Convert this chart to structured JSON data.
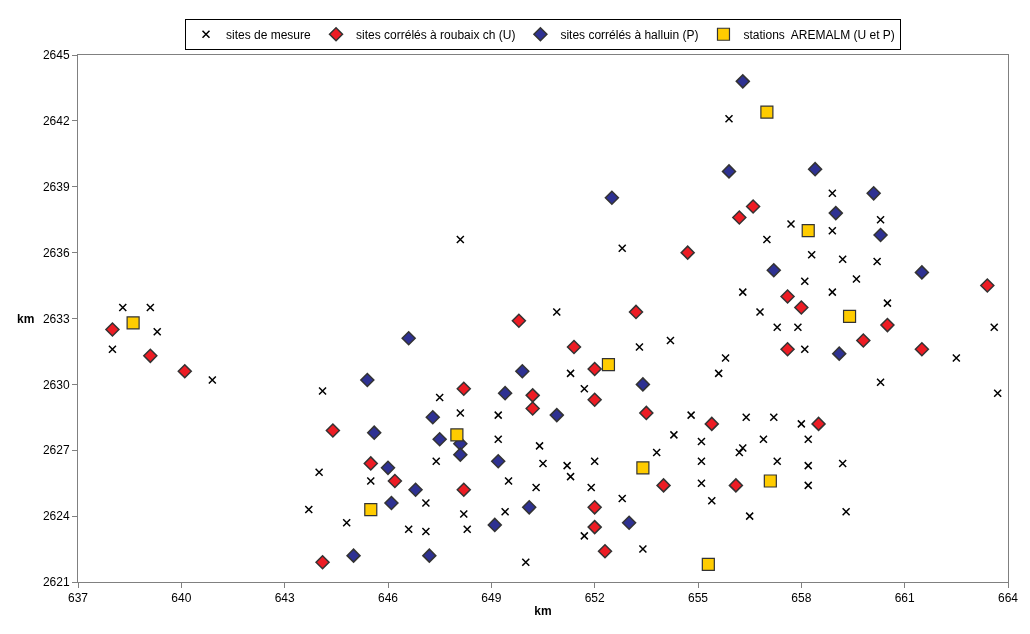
{
  "chart_data": {
    "type": "scatter",
    "xlabel": "km",
    "ylabel": "km",
    "xlim": [
      637,
      664
    ],
    "xticks": [
      637,
      640,
      643,
      646,
      649,
      652,
      655,
      658,
      661,
      664
    ],
    "ylim": [
      2621,
      2645
    ],
    "yticks": [
      2621,
      2624,
      2627,
      2630,
      2633,
      2636,
      2639,
      2642,
      2645
    ],
    "legend": "top",
    "series": [
      {
        "name": "sites de mesure",
        "color": "#000000",
        "marker": "cross",
        "x": [
          638.3,
          639.1,
          638.0,
          639.3,
          640.9,
          644.1,
          644.0,
          643.7,
          644.8,
          645.5,
          648.1,
          652.8,
          650.9,
          655.9,
          658.9,
          660.3,
          657.7,
          657.0,
          658.9,
          658.3,
          659.2,
          660.2,
          658.1,
          659.6,
          656.3,
          658.9,
          656.8,
          660.5,
          653.3,
          654.2,
          651.3,
          651.7,
          647.5,
          648.1,
          649.2,
          654.8,
          649.2,
          654.3,
          650.4,
          653.8,
          655.1,
          647.4,
          650.5,
          651.2,
          652.0,
          655.1,
          651.3,
          649.5,
          655.1,
          650.3,
          651.9,
          647.1,
          652.8,
          648.2,
          649.4,
          646.6,
          647.1,
          648.3,
          651.7,
          653.4,
          650.0,
          657.3,
          657.9,
          658.1,
          663.6,
          655.8,
          655.6,
          662.5,
          660.3,
          663.7,
          656.4,
          657.2,
          658.0,
          658.2,
          656.9,
          656.3,
          656.2,
          657.3,
          658.2,
          659.2,
          658.2,
          655.4,
          656.5,
          659.3
        ],
        "values": [
          2633.5,
          2633.5,
          2631.6,
          2632.4,
          2630.2,
          2629.7,
          2626.0,
          2624.3,
          2623.7,
          2625.6,
          2636.6,
          2636.2,
          2633.3,
          2642.1,
          2638.7,
          2637.5,
          2637.3,
          2636.6,
          2637.0,
          2635.9,
          2635.7,
          2635.6,
          2634.7,
          2634.8,
          2634.2,
          2634.2,
          2633.3,
          2633.7,
          2631.7,
          2632.0,
          2630.5,
          2629.8,
          2629.4,
          2628.7,
          2628.6,
          2628.6,
          2627.5,
          2627.7,
          2627.2,
          2626.9,
          2627.4,
          2626.5,
          2626.4,
          2626.3,
          2626.5,
          2626.5,
          2625.8,
          2625.6,
          2625.5,
          2625.3,
          2625.3,
          2624.6,
          2624.8,
          2624.1,
          2624.2,
          2623.4,
          2623.3,
          2623.4,
          2623.1,
          2622.5,
          2621.9,
          2632.6,
          2632.6,
          2631.6,
          2632.6,
          2631.2,
          2630.5,
          2631.2,
          2630.1,
          2629.6,
          2628.5,
          2628.5,
          2628.2,
          2627.5,
          2627.5,
          2627.1,
          2626.9,
          2626.5,
          2626.3,
          2626.4,
          2625.4,
          2624.7,
          2624.0,
          2624.2
        ]
      },
      {
        "name": "sites corrélés à roubaix ch (U)",
        "color": "#ed1c24",
        "marker": "diamond",
        "x": [
          638.0,
          639.1,
          640.1,
          644.4,
          645.5,
          646.2,
          644.1,
          648.2,
          648.2,
          649.8,
          650.2,
          650.2,
          651.4,
          652.0,
          652.0,
          652.0,
          652.0,
          652.3,
          653.2,
          653.5,
          654.0,
          654.7,
          655.4,
          656.1,
          656.2,
          656.6,
          657.6,
          658.0,
          657.6,
          658.5,
          659.8,
          660.5,
          661.5,
          663.4
        ],
        "values": [
          2632.5,
          2631.3,
          2630.6,
          2627.9,
          2626.4,
          2625.6,
          2621.9,
          2629.8,
          2625.2,
          2632.9,
          2629.5,
          2628.9,
          2631.7,
          2630.7,
          2629.3,
          2624.4,
          2623.5,
          2622.4,
          2633.3,
          2628.7,
          2625.4,
          2636.0,
          2628.2,
          2625.4,
          2637.6,
          2638.1,
          2634.0,
          2633.5,
          2631.6,
          2628.2,
          2632.0,
          2632.7,
          2631.6,
          2634.5
        ]
      },
      {
        "name": "sites corrélés à halluin (P)",
        "color": "#2e3192",
        "marker": "diamond",
        "x": [
          652.5,
          656.3,
          655.9,
          658.4,
          660.1,
          659.0,
          660.3,
          657.2,
          661.5,
          645.4,
          645.6,
          646.0,
          646.1,
          645.0,
          646.6,
          649.9,
          649.4,
          647.3,
          650.9,
          653.4,
          647.5,
          648.1,
          648.1,
          649.2,
          646.8,
          650.1,
          649.1,
          653.0,
          647.2,
          659.1
        ],
        "values": [
          2638.5,
          2643.8,
          2639.7,
          2639.8,
          2638.7,
          2637.8,
          2636.8,
          2635.2,
          2635.1,
          2630.2,
          2627.8,
          2626.2,
          2624.6,
          2622.2,
          2632.1,
          2630.6,
          2629.6,
          2628.5,
          2628.6,
          2630.0,
          2627.5,
          2627.3,
          2626.8,
          2626.5,
          2625.2,
          2624.4,
          2623.6,
          2623.7,
          2622.2,
          2631.4
        ]
      },
      {
        "name": "stations  AREMALM (U et P)",
        "color": "#ffcc00",
        "marker": "square",
        "x": [
          638.6,
          645.5,
          648.0,
          652.4,
          653.4,
          655.3,
          657.1,
          659.4,
          657.0,
          658.2
        ],
        "values": [
          2632.8,
          2624.3,
          2627.7,
          2630.9,
          2626.2,
          2621.8,
          2625.6,
          2633.1,
          2642.4,
          2637.0
        ]
      }
    ]
  }
}
